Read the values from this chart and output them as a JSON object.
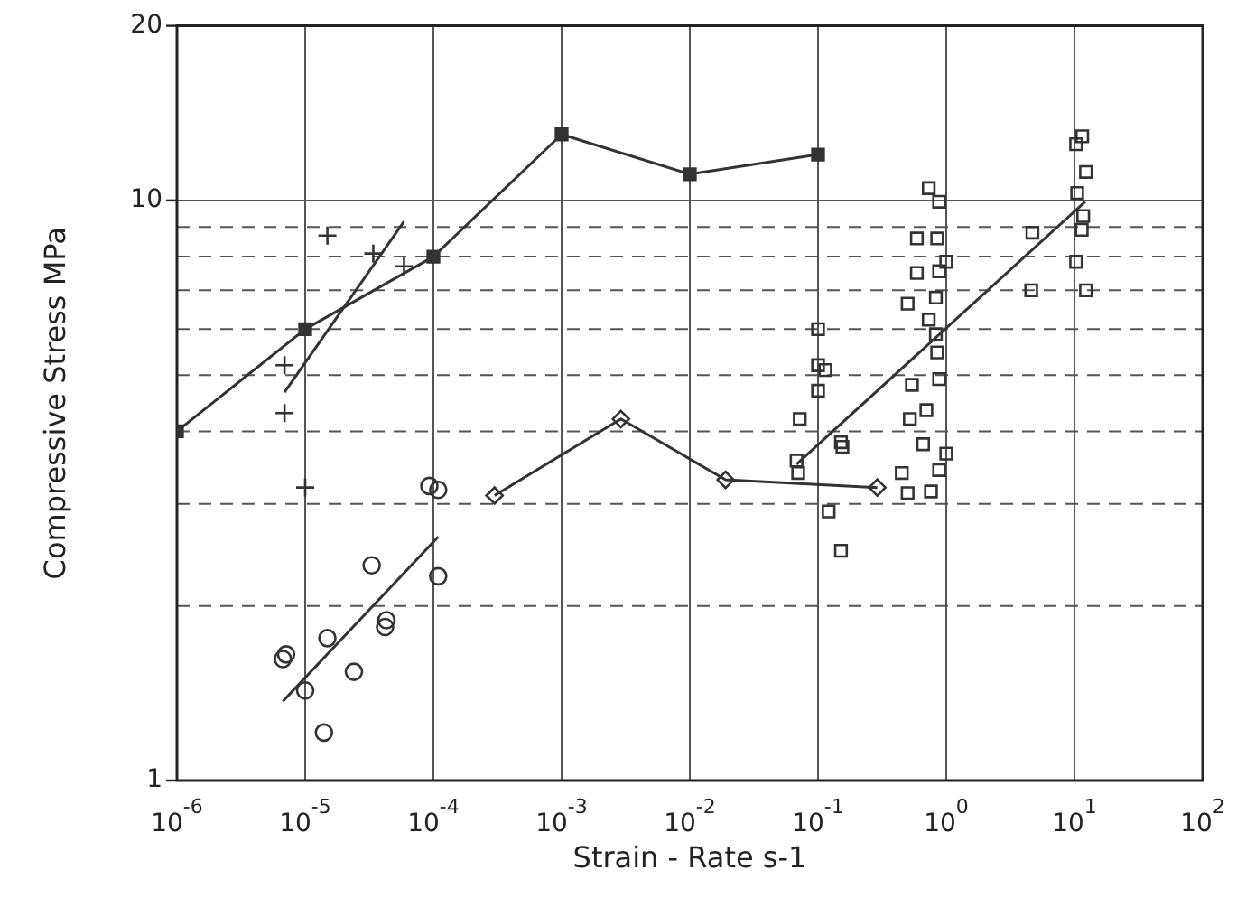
{
  "chart_data": {
    "type": "scatter",
    "xlabel": "Strain - Rate s-1",
    "ylabel": "Compressive Stress MPa",
    "log": "xy",
    "grid": true,
    "legend": false,
    "xlim": [
      1e-06,
      100
    ],
    "ylim": [
      1,
      20
    ],
    "xticks": [
      {
        "value": 1e-06,
        "label": "10$^{-6}$"
      },
      {
        "value": 1e-05,
        "label": "10$^{-5}$"
      },
      {
        "value": 0.0001,
        "label": "10$^{-4}$"
      },
      {
        "value": 0.001,
        "label": "10$^{-3}$"
      },
      {
        "value": 0.01,
        "label": "10$^{-2}$"
      },
      {
        "value": 0.1,
        "label": "10$^{-1}$"
      },
      {
        "value": 1,
        "label": "10$^{0}$"
      },
      {
        "value": 10,
        "label": "10$^{1}$"
      },
      {
        "value": 100,
        "label": "10$^{2}$"
      }
    ],
    "yticks": [
      1,
      {
        "value": 2,
        "label": null
      },
      {
        "value": 3,
        "label": null
      },
      {
        "value": 4,
        "label": null
      },
      {
        "value": 5,
        "label": null
      },
      {
        "value": 6,
        "label": null
      },
      {
        "value": 7,
        "label": null
      },
      {
        "value": 8,
        "label": null
      },
      {
        "value": 9,
        "label": null
      },
      10,
      20
    ],
    "series": [
      {
        "type": "line",
        "marker": "square",
        "color": "#333333",
        "x": [
          1e-06,
          1e-05,
          0.0001,
          0.001,
          0.01,
          0.1
        ],
        "values": [
          4.0,
          6.0,
          8.0,
          13,
          11.1,
          12.0
        ]
      },
      {
        "type": "line",
        "marker": "diamond",
        "color": "#333333",
        "x": [
          0.0003,
          0.0029,
          0.019,
          0.29
        ],
        "values": [
          3.1,
          4.2,
          3.3,
          3.2
        ]
      },
      {
        "type": "scatter",
        "marker": "cross",
        "color": "#333333",
        "x": [
          1.49e-05,
          3.4e-05,
          5.9e-05,
          6.9e-06,
          6.9e-06,
          1e-05
        ],
        "values": [
          8.7,
          8.1,
          7.7,
          5.2,
          4.3,
          3.2
        ]
      },
      {
        "type": "scatter",
        "marker": "circle",
        "color": "#333333",
        "x": [
          9.3e-05,
          0.000109,
          3.3e-05,
          0.000109,
          4.3e-05,
          4.2e-05,
          1.49e-05,
          7.1e-06,
          6.7e-06,
          2.4e-05,
          1e-05,
          1.4e-05
        ],
        "values": [
          3.22,
          3.17,
          2.35,
          2.25,
          1.89,
          1.84,
          1.76,
          1.65,
          1.62,
          1.54,
          1.43,
          1.21
        ]
      },
      {
        "type": "scatter",
        "marker": "square",
        "color": "#333333",
        "x": [
          0.1,
          0.1,
          0.114,
          0.1,
          0.072,
          0.151,
          0.155,
          0.068,
          0.07,
          0.121,
          0.151,
          0.73,
          0.88,
          0.59,
          0.85,
          1.0,
          0.59,
          0.88,
          0.5,
          0.83,
          0.73,
          0.83,
          0.85,
          0.54,
          0.88,
          0.52,
          0.7,
          0.66,
          1.0,
          0.88,
          0.45,
          0.5,
          0.76,
          10.3,
          11.5,
          12.3,
          10.5,
          11.7,
          11.4,
          4.7,
          10.3,
          12.3,
          4.6
        ],
        "values": [
          6.0,
          5.2,
          5.1,
          4.7,
          4.2,
          3.83,
          3.76,
          3.56,
          3.39,
          2.91,
          2.49,
          10.5,
          9.95,
          8.6,
          8.6,
          7.84,
          7.5,
          7.55,
          6.64,
          6.8,
          6.23,
          5.88,
          5.47,
          4.81,
          4.92,
          4.2,
          4.35,
          3.8,
          3.66,
          3.43,
          3.39,
          3.13,
          3.15,
          12.5,
          12.9,
          11.2,
          10.3,
          9.4,
          8.9,
          8.8,
          7.84,
          7.0,
          7.0
        ]
      },
      {
        "type": "line",
        "marker": "none",
        "color": "#333333",
        "x": [
          6.9e-06,
          5.9e-05
        ],
        "values": [
          4.67,
          9.2
        ]
      },
      {
        "type": "line",
        "marker": "none",
        "color": "#333333",
        "x": [
          6.7e-06,
          0.000109
        ],
        "values": [
          1.37,
          2.63
        ]
      },
      {
        "type": "line",
        "marker": "none",
        "color": "#333333",
        "x": [
          0.068,
          12.1
        ],
        "values": [
          3.51,
          9.95
        ]
      }
    ]
  }
}
